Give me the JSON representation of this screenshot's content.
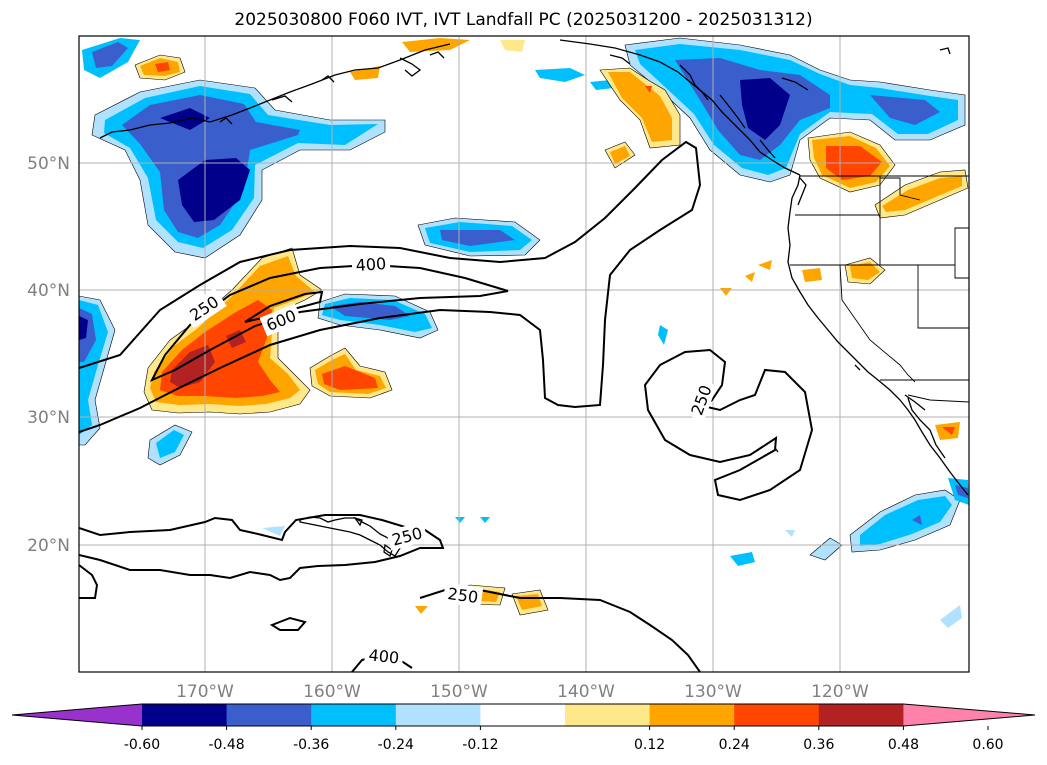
{
  "title": "2025030800 F060 IVT, IVT Landfall PC (2025031200 - 2025031312)",
  "map": {
    "lat_labels": [
      "50°N",
      "40°N",
      "30°N",
      "20°N"
    ],
    "lon_labels": [
      "170°W",
      "160°W",
      "150°W",
      "140°W",
      "130°W",
      "120°W"
    ],
    "contour_labels": [
      "250",
      "400",
      "600",
      "250",
      "250",
      "250",
      "400"
    ]
  },
  "colorbar": {
    "colors": [
      "#9932cc",
      "#00008b",
      "#3a5fcd",
      "#00bfff",
      "#b0e2ff",
      "#ffffff",
      "#ffe88a",
      "#ffa500",
      "#ff4500",
      "#b22222",
      "#ff82ab"
    ],
    "ticks": [
      "-0.60",
      "-0.48",
      "-0.36",
      "-0.24",
      "-0.12",
      "0.12",
      "0.24",
      "0.36",
      "0.48",
      "0.60"
    ]
  }
}
